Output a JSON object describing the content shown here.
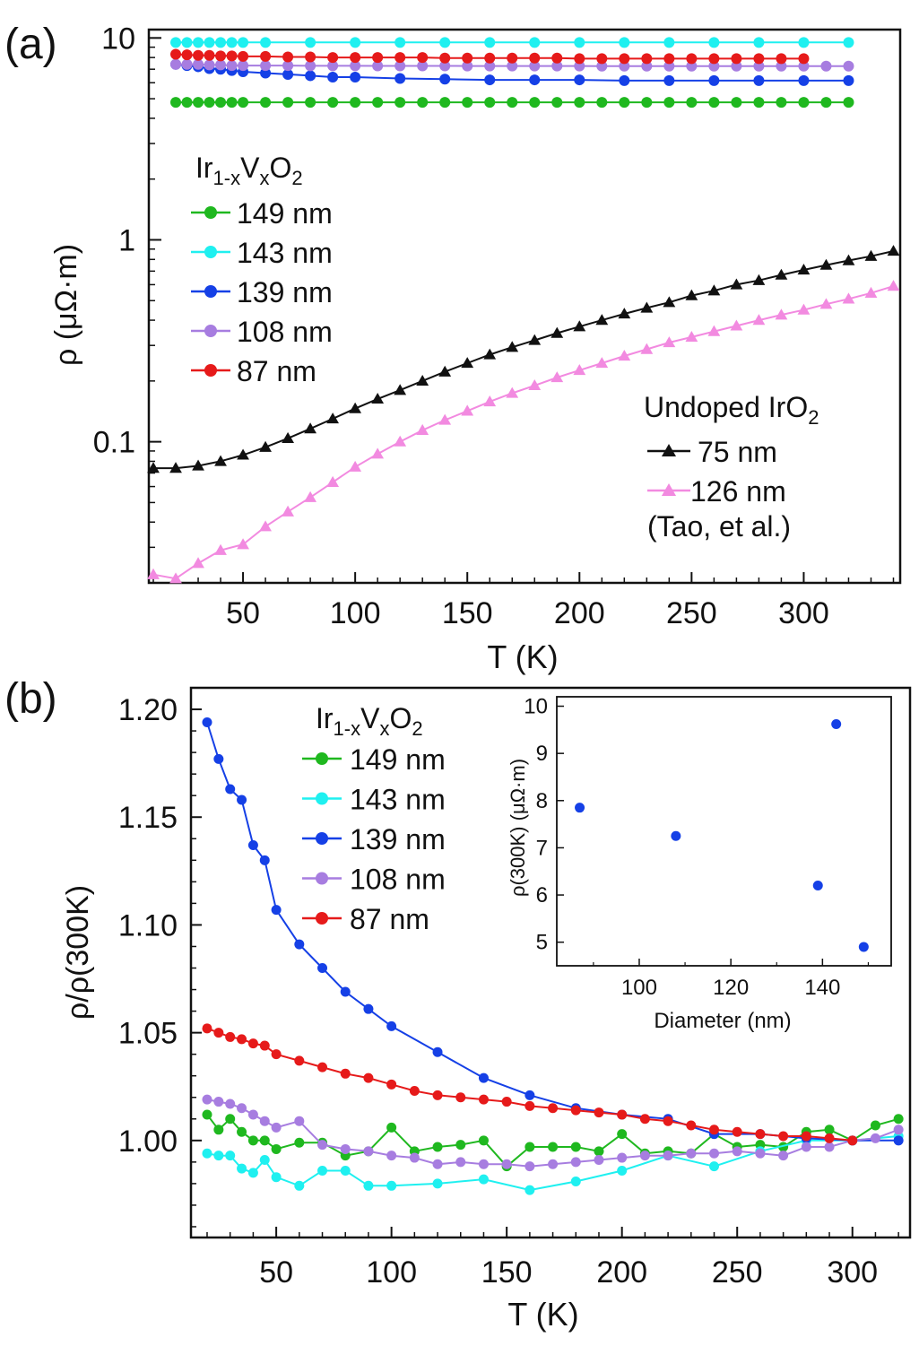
{
  "colors": {
    "green": "#1fb81f",
    "cyan": "#1ff0f0",
    "blue": "#1540e6",
    "purple": "#a77de0",
    "red": "#e61a1a",
    "black": "#111111",
    "pink": "#f28ae0"
  },
  "chart_data": [
    {
      "panel_label": "(a)",
      "type": "scatter",
      "x_scale": "linear",
      "y_scale": "log",
      "xlabel": "T (K)",
      "ylabel": "ρ (μΩ·m)",
      "xlim": [
        8,
        343
      ],
      "ylim": [
        0.02,
        11
      ],
      "x_ticks": [
        50,
        100,
        150,
        200,
        250,
        300
      ],
      "y_ticks": [
        0.1,
        1,
        10
      ],
      "y_tick_labels": [
        "0.1",
        "1",
        "10"
      ],
      "legend_primary": {
        "placement": "top-left",
        "title_main": "Ir",
        "title_sub1": "1-x",
        "title_v": "V",
        "title_sub2": "x",
        "title_o": "O",
        "title_sub3": "2",
        "entries": [
          "149 nm",
          "143 nm",
          "139 nm",
          "108 nm",
          "87 nm"
        ]
      },
      "legend_secondary": {
        "placement": "bottom-right",
        "title_main": "Undoped IrO",
        "title_sub": "2",
        "entries": [
          "75 nm",
          "126 nm"
        ],
        "note": "(Tao, et al.)"
      },
      "series": [
        {
          "name": "149 nm",
          "color_key": "green",
          "marker": "circle",
          "x": [
            20,
            25,
            30,
            35,
            40,
            45,
            50,
            60,
            70,
            80,
            90,
            100,
            110,
            120,
            130,
            140,
            150,
            160,
            170,
            180,
            190,
            200,
            210,
            220,
            230,
            240,
            250,
            260,
            270,
            280,
            290,
            300,
            310,
            320
          ],
          "y": [
            4.8,
            4.8,
            4.8,
            4.8,
            4.8,
            4.8,
            4.8,
            4.8,
            4.8,
            4.8,
            4.8,
            4.8,
            4.8,
            4.8,
            4.8,
            4.8,
            4.8,
            4.8,
            4.8,
            4.8,
            4.8,
            4.8,
            4.8,
            4.8,
            4.8,
            4.8,
            4.8,
            4.8,
            4.8,
            4.8,
            4.8,
            4.8,
            4.8,
            4.8
          ]
        },
        {
          "name": "143 nm",
          "color_key": "cyan",
          "marker": "circle",
          "x": [
            20,
            25,
            30,
            35,
            40,
            45,
            50,
            60,
            80,
            100,
            120,
            140,
            160,
            180,
            200,
            220,
            240,
            260,
            280,
            300,
            320
          ],
          "y": [
            9.5,
            9.5,
            9.5,
            9.5,
            9.5,
            9.5,
            9.5,
            9.5,
            9.5,
            9.5,
            9.5,
            9.5,
            9.5,
            9.5,
            9.5,
            9.5,
            9.5,
            9.5,
            9.5,
            9.5,
            9.5
          ]
        },
        {
          "name": "139 nm",
          "color_key": "blue",
          "marker": "circle",
          "x": [
            20,
            25,
            30,
            35,
            40,
            45,
            50,
            60,
            70,
            80,
            90,
            100,
            120,
            140,
            160,
            180,
            200,
            220,
            240,
            260,
            280,
            300,
            320
          ],
          "y": [
            7.4,
            7.3,
            7.2,
            7.05,
            7.0,
            6.9,
            6.8,
            6.7,
            6.6,
            6.5,
            6.4,
            6.4,
            6.3,
            6.25,
            6.2,
            6.2,
            6.2,
            6.15,
            6.15,
            6.15,
            6.15,
            6.15,
            6.15
          ]
        },
        {
          "name": "108 nm",
          "color_key": "purple",
          "marker": "circle",
          "x": [
            20,
            25,
            30,
            35,
            40,
            45,
            50,
            60,
            70,
            80,
            90,
            100,
            110,
            120,
            130,
            140,
            150,
            160,
            170,
            180,
            190,
            200,
            210,
            220,
            230,
            240,
            250,
            260,
            270,
            280,
            290,
            300,
            310,
            320
          ],
          "y": [
            7.4,
            7.4,
            7.4,
            7.35,
            7.35,
            7.3,
            7.3,
            7.3,
            7.3,
            7.28,
            7.28,
            7.28,
            7.27,
            7.27,
            7.27,
            7.27,
            7.26,
            7.26,
            7.26,
            7.26,
            7.26,
            7.26,
            7.25,
            7.25,
            7.25,
            7.25,
            7.25,
            7.25,
            7.25,
            7.25,
            7.25,
            7.25,
            7.25,
            7.25
          ]
        },
        {
          "name": "87 nm",
          "color_key": "red",
          "marker": "circle",
          "x": [
            20,
            25,
            30,
            35,
            40,
            45,
            50,
            60,
            70,
            80,
            90,
            100,
            110,
            120,
            130,
            140,
            150,
            160,
            170,
            180,
            190,
            200,
            210,
            220,
            230,
            240,
            250,
            260,
            270,
            280,
            290,
            300
          ],
          "y": [
            8.3,
            8.25,
            8.2,
            8.2,
            8.15,
            8.15,
            8.1,
            8.1,
            8.05,
            8.05,
            8.0,
            8.0,
            8.0,
            8.0,
            8.0,
            7.95,
            7.95,
            7.95,
            7.95,
            7.95,
            7.95,
            7.9,
            7.9,
            7.9,
            7.9,
            7.9,
            7.9,
            7.9,
            7.9,
            7.9,
            7.9,
            7.9
          ]
        },
        {
          "name": "75 nm",
          "color_key": "black",
          "marker": "triangle",
          "x": [
            10,
            20,
            30,
            40,
            50,
            60,
            70,
            80,
            90,
            100,
            110,
            120,
            130,
            140,
            150,
            160,
            170,
            180,
            190,
            200,
            210,
            220,
            230,
            240,
            250,
            260,
            270,
            280,
            290,
            300,
            310,
            320,
            330,
            340
          ],
          "y": [
            0.074,
            0.074,
            0.076,
            0.08,
            0.086,
            0.094,
            0.104,
            0.116,
            0.13,
            0.146,
            0.163,
            0.18,
            0.2,
            0.222,
            0.245,
            0.27,
            0.294,
            0.318,
            0.345,
            0.372,
            0.4,
            0.43,
            0.46,
            0.49,
            0.53,
            0.56,
            0.6,
            0.63,
            0.67,
            0.71,
            0.75,
            0.79,
            0.83,
            0.88
          ]
        },
        {
          "name": "126 nm",
          "color_key": "pink",
          "marker": "triangle",
          "x": [
            10,
            20,
            30,
            40,
            50,
            60,
            70,
            80,
            90,
            100,
            110,
            120,
            130,
            140,
            150,
            160,
            170,
            180,
            190,
            200,
            210,
            220,
            230,
            240,
            250,
            260,
            270,
            280,
            290,
            300,
            310,
            320,
            330,
            340
          ],
          "y": [
            0.022,
            0.021,
            0.025,
            0.029,
            0.031,
            0.038,
            0.045,
            0.053,
            0.063,
            0.075,
            0.087,
            0.1,
            0.114,
            0.128,
            0.142,
            0.158,
            0.174,
            0.19,
            0.208,
            0.226,
            0.245,
            0.266,
            0.287,
            0.31,
            0.33,
            0.352,
            0.375,
            0.4,
            0.425,
            0.45,
            0.48,
            0.51,
            0.545,
            0.59
          ]
        }
      ]
    },
    {
      "panel_label": "(b)",
      "type": "line",
      "xlabel": "T (K)",
      "ylabel": "ρ/ρ(300K)",
      "xlim": [
        13,
        325
      ],
      "ylim": [
        0.955,
        1.21
      ],
      "x_ticks": [
        50,
        100,
        150,
        200,
        250,
        300
      ],
      "y_ticks": [
        1.0,
        1.05,
        1.1,
        1.15,
        1.2
      ],
      "y_tick_labels": [
        "1.00",
        "1.05",
        "1.10",
        "1.15",
        "1.20"
      ],
      "legend": {
        "placement": "top-center",
        "title_main": "Ir",
        "title_sub1": "1-x",
        "title_v": "V",
        "title_sub2": "x",
        "title_o": "O",
        "title_sub3": "2",
        "entries": [
          "149 nm",
          "143 nm",
          "139 nm",
          "108 nm",
          "87 nm"
        ]
      },
      "series": [
        {
          "name": "149 nm",
          "color_key": "green",
          "x": [
            20,
            25,
            30,
            35,
            40,
            45,
            50,
            60,
            70,
            80,
            90,
            100,
            110,
            120,
            130,
            140,
            150,
            160,
            170,
            180,
            190,
            200,
            210,
            220,
            230,
            240,
            250,
            260,
            270,
            280,
            290,
            300,
            310,
            320
          ],
          "y": [
            1.012,
            1.005,
            1.01,
            1.004,
            1.0,
            1.0,
            0.996,
            0.999,
            0.999,
            0.993,
            0.995,
            1.006,
            0.995,
            0.997,
            0.998,
            1.0,
            0.988,
            0.997,
            0.997,
            0.997,
            0.995,
            1.003,
            0.994,
            0.995,
            0.994,
            1.003,
            0.997,
            0.998,
            0.997,
            1.004,
            1.005,
            1.0,
            1.007,
            1.01
          ]
        },
        {
          "name": "143 nm",
          "color_key": "cyan",
          "x": [
            20,
            25,
            30,
            35,
            40,
            45,
            50,
            60,
            70,
            80,
            90,
            100,
            120,
            140,
            160,
            180,
            200,
            220,
            240,
            260,
            280,
            300,
            320
          ],
          "y": [
            0.994,
            0.993,
            0.993,
            0.987,
            0.985,
            0.991,
            0.983,
            0.979,
            0.986,
            0.986,
            0.979,
            0.979,
            0.98,
            0.982,
            0.977,
            0.981,
            0.986,
            0.993,
            0.988,
            0.995,
            1.0,
            1.0,
            1.002
          ]
        },
        {
          "name": "139 nm",
          "color_key": "blue",
          "x": [
            20,
            25,
            30,
            35,
            40,
            45,
            50,
            60,
            70,
            80,
            90,
            100,
            120,
            140,
            160,
            180,
            200,
            220,
            240,
            260,
            280,
            300,
            320
          ],
          "y": [
            1.194,
            1.177,
            1.163,
            1.158,
            1.137,
            1.13,
            1.107,
            1.091,
            1.08,
            1.069,
            1.061,
            1.053,
            1.041,
            1.029,
            1.021,
            1.015,
            1.012,
            1.01,
            1.003,
            1.003,
            1.001,
            1.0,
            1.0
          ]
        },
        {
          "name": "108 nm",
          "color_key": "purple",
          "x": [
            20,
            25,
            30,
            35,
            40,
            45,
            50,
            60,
            70,
            80,
            90,
            100,
            110,
            120,
            130,
            140,
            150,
            160,
            170,
            180,
            190,
            200,
            210,
            220,
            230,
            240,
            250,
            260,
            270,
            280,
            290,
            300,
            310,
            320
          ],
          "y": [
            1.019,
            1.018,
            1.017,
            1.015,
            1.012,
            1.009,
            1.006,
            1.009,
            0.998,
            0.996,
            0.995,
            0.993,
            0.992,
            0.989,
            0.99,
            0.989,
            0.989,
            0.988,
            0.989,
            0.99,
            0.991,
            0.992,
            0.993,
            0.993,
            0.994,
            0.994,
            0.995,
            0.994,
            0.993,
            0.997,
            0.997,
            1.0,
            1.001,
            1.005
          ]
        },
        {
          "name": "87 nm",
          "color_key": "red",
          "x": [
            20,
            25,
            30,
            35,
            40,
            45,
            50,
            60,
            70,
            80,
            90,
            100,
            110,
            120,
            130,
            140,
            150,
            160,
            170,
            180,
            190,
            200,
            210,
            220,
            230,
            240,
            250,
            260,
            270,
            280,
            290,
            300
          ],
          "y": [
            1.052,
            1.05,
            1.048,
            1.047,
            1.045,
            1.044,
            1.04,
            1.037,
            1.034,
            1.031,
            1.029,
            1.026,
            1.023,
            1.021,
            1.02,
            1.019,
            1.018,
            1.016,
            1.015,
            1.014,
            1.013,
            1.012,
            1.01,
            1.009,
            1.007,
            1.005,
            1.004,
            1.003,
            1.002,
            1.002,
            1.001,
            1.0
          ]
        }
      ],
      "inset": {
        "type": "scatter",
        "xlabel": "Diameter (nm)",
        "ylabel": "ρ(300K) (μΩ·m)",
        "xlim": [
          82,
          155
        ],
        "ylim": [
          4.5,
          10.2
        ],
        "x_ticks": [
          100,
          120,
          140
        ],
        "y_ticks": [
          5,
          6,
          7,
          8,
          9,
          10
        ],
        "color_key": "blue",
        "x": [
          87,
          108,
          139,
          143,
          149
        ],
        "y": [
          7.85,
          7.25,
          6.2,
          9.62,
          4.9
        ]
      }
    }
  ]
}
